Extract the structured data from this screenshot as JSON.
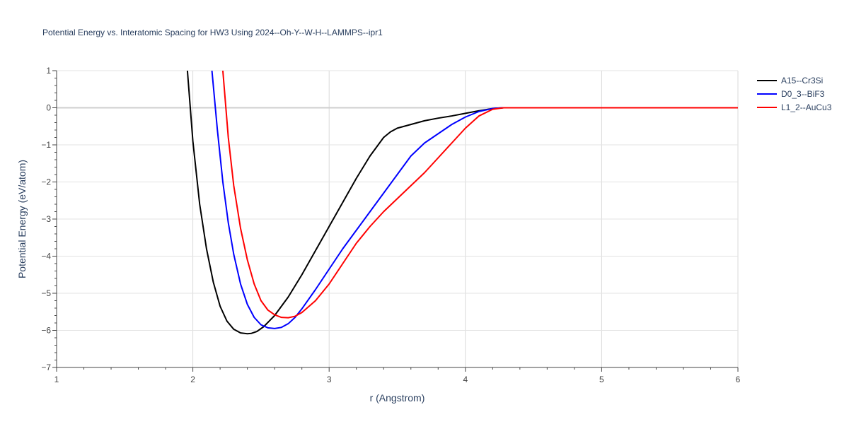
{
  "chart_data": {
    "type": "line",
    "title": "Potential Energy vs. Interatomic Spacing for HW3 Using 2024--Oh-Y--W-H--LAMMPS--ipr1",
    "xlabel": "r (Angstrom)",
    "ylabel": "Potential Energy (eV/atom)",
    "xlim": [
      1,
      6
    ],
    "ylim": [
      -7,
      1
    ],
    "xticks": [
      1,
      2,
      3,
      4,
      5,
      6
    ],
    "yticks": [
      1,
      0,
      -1,
      -2,
      -3,
      -4,
      -5,
      -6,
      -7
    ],
    "xtick_labels": [
      "1",
      "2",
      "3",
      "4",
      "5",
      "6"
    ],
    "ytick_labels": [
      "1",
      "0",
      "−1",
      "−2",
      "−3",
      "−4",
      "−5",
      "−6",
      "−7"
    ],
    "grid": true,
    "legend_position": "top-right",
    "series": [
      {
        "name": "A15--Cr3Si",
        "color": "#000000",
        "x": [
          1.96,
          2.0,
          2.05,
          2.1,
          2.15,
          2.2,
          2.25,
          2.3,
          2.35,
          2.4,
          2.43,
          2.47,
          2.52,
          2.6,
          2.7,
          2.8,
          2.9,
          3.0,
          3.1,
          3.2,
          3.3,
          3.4,
          3.45,
          3.5,
          3.6,
          3.7,
          3.8,
          3.9,
          4.0,
          4.1,
          4.2,
          4.28,
          4.4,
          5.0,
          6.0
        ],
        "y": [
          1.0,
          -0.9,
          -2.6,
          -3.8,
          -4.7,
          -5.35,
          -5.75,
          -5.97,
          -6.07,
          -6.09,
          -6.08,
          -6.03,
          -5.9,
          -5.6,
          -5.1,
          -4.5,
          -3.85,
          -3.2,
          -2.55,
          -1.9,
          -1.3,
          -0.8,
          -0.65,
          -0.55,
          -0.45,
          -0.35,
          -0.28,
          -0.22,
          -0.15,
          -0.08,
          -0.02,
          0.0,
          0.0,
          0.0,
          0.0
        ]
      },
      {
        "name": "D0_3--BiF3",
        "color": "#0000ff",
        "x": [
          2.14,
          2.18,
          2.22,
          2.26,
          2.3,
          2.35,
          2.4,
          2.45,
          2.5,
          2.55,
          2.6,
          2.65,
          2.7,
          2.75,
          2.8,
          2.9,
          3.0,
          3.1,
          3.2,
          3.3,
          3.4,
          3.5,
          3.6,
          3.7,
          3.8,
          3.9,
          4.0,
          4.1,
          4.2,
          4.28,
          4.4,
          5.0,
          6.0
        ],
        "y": [
          1.0,
          -0.6,
          -2.0,
          -3.1,
          -3.95,
          -4.75,
          -5.3,
          -5.65,
          -5.85,
          -5.93,
          -5.95,
          -5.92,
          -5.82,
          -5.65,
          -5.42,
          -4.9,
          -4.35,
          -3.8,
          -3.3,
          -2.8,
          -2.3,
          -1.8,
          -1.3,
          -0.95,
          -0.7,
          -0.45,
          -0.25,
          -0.1,
          -0.02,
          0.0,
          0.0,
          0.0,
          0.0
        ]
      },
      {
        "name": "L1_2--AuCu3",
        "color": "#ff0000",
        "x": [
          2.22,
          2.26,
          2.3,
          2.35,
          2.4,
          2.45,
          2.5,
          2.55,
          2.6,
          2.65,
          2.7,
          2.75,
          2.8,
          2.9,
          3.0,
          3.1,
          3.2,
          3.3,
          3.4,
          3.5,
          3.6,
          3.7,
          3.8,
          3.9,
          4.0,
          4.1,
          4.2,
          4.28,
          4.4,
          5.0,
          6.0
        ],
        "y": [
          1.0,
          -0.8,
          -2.1,
          -3.25,
          -4.1,
          -4.75,
          -5.2,
          -5.45,
          -5.58,
          -5.65,
          -5.66,
          -5.62,
          -5.52,
          -5.2,
          -4.75,
          -4.2,
          -3.65,
          -3.2,
          -2.8,
          -2.45,
          -2.1,
          -1.75,
          -1.35,
          -0.95,
          -0.55,
          -0.22,
          -0.04,
          0.0,
          0.0,
          0.0,
          0.0
        ]
      }
    ]
  }
}
